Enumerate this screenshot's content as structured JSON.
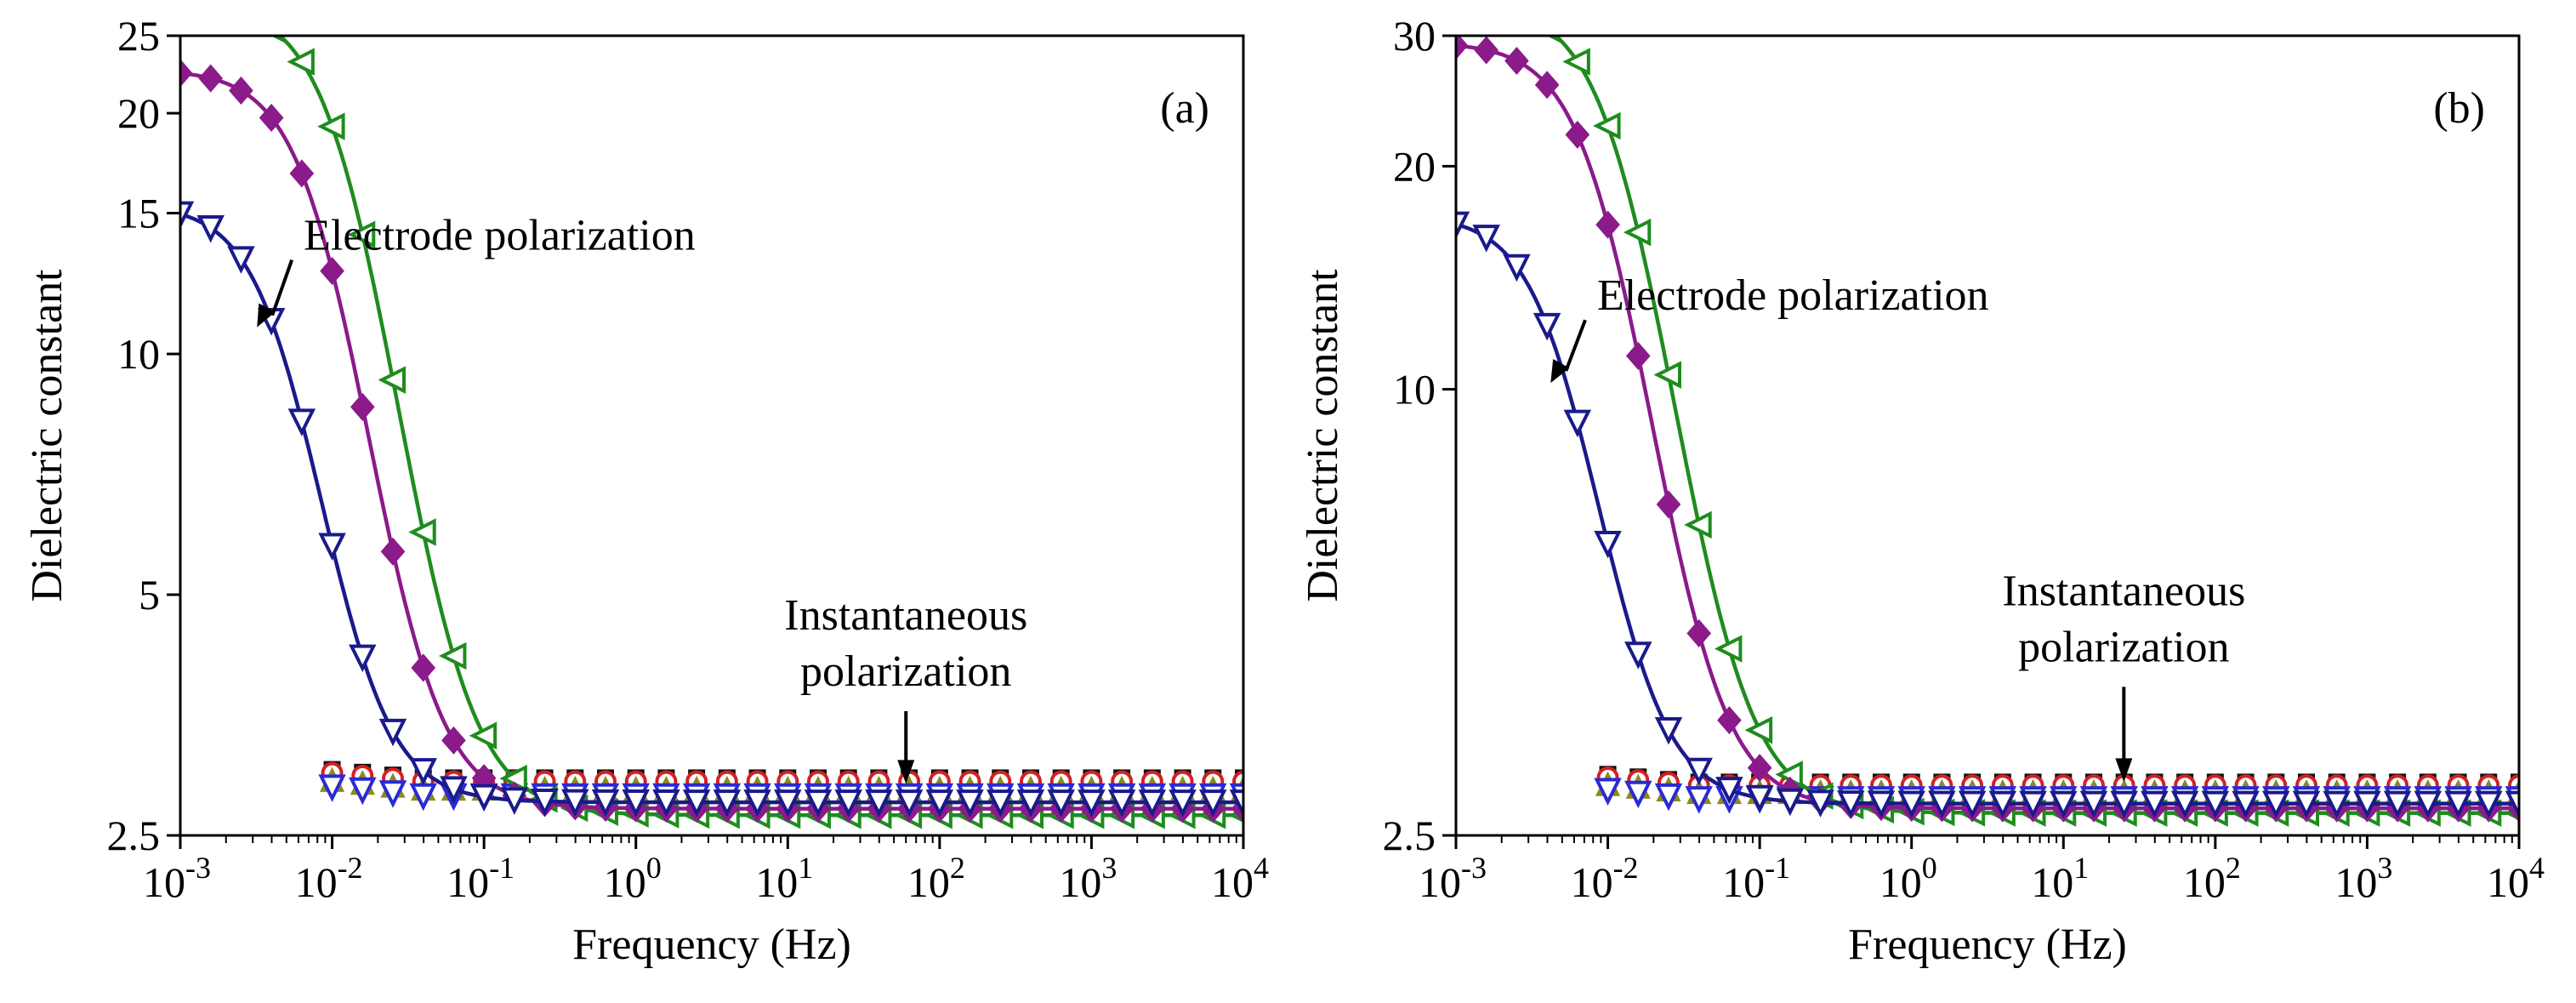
{
  "chart_data": [
    {
      "type": "line",
      "panel_label": "(a)",
      "xlabel": "Frequency (Hz)",
      "ylabel": "Dielectric constant",
      "x_scale": "log",
      "xlim": [
        0.001,
        10000
      ],
      "x_ticks": [
        {
          "value": 0.001,
          "base": "10",
          "exp": "-3"
        },
        {
          "value": 0.01,
          "base": "10",
          "exp": "-2"
        },
        {
          "value": 0.1,
          "base": "10",
          "exp": "-1"
        },
        {
          "value": 1,
          "base": "10",
          "exp": "0"
        },
        {
          "value": 10,
          "base": "10",
          "exp": "1"
        },
        {
          "value": 100,
          "base": "10",
          "exp": "2"
        },
        {
          "value": 1000,
          "base": "10",
          "exp": "3"
        },
        {
          "value": 10000,
          "base": "10",
          "exp": "4"
        }
      ],
      "y_scale": "log",
      "ylim": [
        2.5,
        25
      ],
      "y_ticks": [
        {
          "value": 2.5,
          "label": "2.5"
        },
        {
          "value": 5,
          "label": "5"
        },
        {
          "value": 10,
          "label": "10"
        },
        {
          "value": 15,
          "label": "15"
        },
        {
          "value": 20,
          "label": "20"
        },
        {
          "value": 25,
          "label": "25"
        }
      ],
      "annotations": [
        {
          "text": "Electrode polarization",
          "lines": [
            "Electrode polarization"
          ],
          "target_x": 0.0032,
          "target_y": 10.8,
          "text_x": 0.0065,
          "text_y": 13.5
        },
        {
          "text": "Instantaneous polarization",
          "lines": [
            "Instantaneous",
            "polarization"
          ],
          "target_x": 60,
          "target_y": 2.9,
          "text_x": 60,
          "text_y": 4.1
        }
      ],
      "series": [
        {
          "name": "green",
          "color": "#1e8c1e",
          "marker": "triangle-left-open",
          "fit_line": true,
          "f0": 0.0145,
          "eps_inf": 2.65,
          "eps_s": 27.6,
          "w": 1.85
        },
        {
          "name": "purple",
          "color": "#8b1a8b",
          "marker": "diamond-filled",
          "fit_line": true,
          "f0": 0.01,
          "eps_inf": 2.7,
          "eps_s": 22.7,
          "w": 1.9
        },
        {
          "name": "navy",
          "color": "#1a1a8c",
          "marker": "triangle-down-open",
          "fit_line": true,
          "f0": 0.0055,
          "eps_inf": 2.75,
          "eps_s": 15.4,
          "w": 1.95
        },
        {
          "name": "black",
          "color": "#111111",
          "marker": "square-filled",
          "fit_line": false,
          "eps_inf": 2.95,
          "start": 0.01
        },
        {
          "name": "red",
          "color": "#d42020",
          "marker": "circle-open",
          "fit_line": false,
          "eps_inf": 2.92,
          "start": 0.01
        },
        {
          "name": "olive",
          "color": "#8b8b1a",
          "marker": "triangle-up-filled",
          "fit_line": false,
          "eps_inf": 2.86,
          "start": 0.01
        },
        {
          "name": "blue",
          "color": "#2a2ad4",
          "marker": "triangle-down-open",
          "fit_line": false,
          "eps_inf": 2.8,
          "start": 0.01
        }
      ]
    },
    {
      "type": "line",
      "panel_label": "(b)",
      "xlabel": "Frequency (Hz)",
      "ylabel": "Dielectric constant",
      "x_scale": "log",
      "xlim": [
        0.001,
        10000
      ],
      "x_ticks": [
        {
          "value": 0.001,
          "base": "10",
          "exp": "-3"
        },
        {
          "value": 0.01,
          "base": "10",
          "exp": "-2"
        },
        {
          "value": 0.1,
          "base": "10",
          "exp": "-1"
        },
        {
          "value": 1,
          "base": "10",
          "exp": "0"
        },
        {
          "value": 10,
          "base": "10",
          "exp": "1"
        },
        {
          "value": 100,
          "base": "10",
          "exp": "2"
        },
        {
          "value": 1000,
          "base": "10",
          "exp": "3"
        },
        {
          "value": 10000,
          "base": "10",
          "exp": "4"
        }
      ],
      "y_scale": "log",
      "ylim": [
        2.5,
        30
      ],
      "y_ticks": [
        {
          "value": 2.5,
          "label": "2.5"
        },
        {
          "value": 10,
          "label": "10"
        },
        {
          "value": 20,
          "label": "20"
        },
        {
          "value": 30,
          "label": "30"
        }
      ],
      "annotations": [
        {
          "text": "Electrode polarization",
          "lines": [
            "Electrode polarization"
          ],
          "target_x": 0.0042,
          "target_y": 10.2,
          "text_x": 0.0085,
          "text_y": 12.8
        },
        {
          "text": "Instantaneous polarization",
          "lines": [
            "Instantaneous",
            "polarization"
          ],
          "target_x": 25,
          "target_y": 2.95,
          "text_x": 25,
          "text_y": 4.6
        }
      ],
      "series": [
        {
          "name": "green",
          "color": "#1e8c1e",
          "marker": "triangle-left-open",
          "fit_line": true,
          "f0": 0.014,
          "eps_inf": 2.68,
          "eps_s": 33.4,
          "w": 1.85
        },
        {
          "name": "purple",
          "color": "#8b1a8b",
          "marker": "diamond-filled",
          "fit_line": true,
          "f0": 0.0105,
          "eps_inf": 2.72,
          "eps_s": 29.4,
          "w": 1.9
        },
        {
          "name": "navy",
          "color": "#1a1a8c",
          "marker": "triangle-down-open",
          "fit_line": true,
          "f0": 0.0055,
          "eps_inf": 2.76,
          "eps_s": 17.2,
          "w": 1.95
        },
        {
          "name": "black",
          "color": "#111111",
          "marker": "square-filled",
          "fit_line": false,
          "eps_inf": 2.95,
          "start": 0.01
        },
        {
          "name": "red",
          "color": "#d42020",
          "marker": "circle-open",
          "fit_line": false,
          "eps_inf": 2.92,
          "start": 0.01
        },
        {
          "name": "olive",
          "color": "#8b8b1a",
          "marker": "triangle-up-filled",
          "fit_line": false,
          "eps_inf": 2.86,
          "start": 0.01
        },
        {
          "name": "blue",
          "color": "#2a2ad4",
          "marker": "triangle-down-open",
          "fit_line": false,
          "eps_inf": 2.8,
          "start": 0.01
        }
      ]
    }
  ]
}
